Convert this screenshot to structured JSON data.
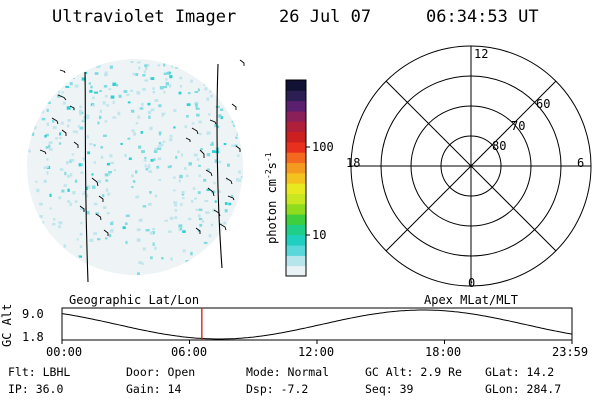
{
  "header": {
    "instrument": "Ultraviolet Imager",
    "date": "26 Jul 07",
    "time": "06:34:53 UT"
  },
  "colorbar": {
    "label": "photon cm",
    "label_exp1": "-2",
    "label_mid": "s",
    "label_exp2": "-1",
    "tick_100": "100",
    "tick_10": "10",
    "colors": [
      "#e9f2f5",
      "#b7e5ec",
      "#59d7d9",
      "#1fcfbf",
      "#1fcf88",
      "#3ecf3e",
      "#8fdc1f",
      "#c9e71f",
      "#e9e91f",
      "#f3c21f",
      "#f39a1f",
      "#f36a1f",
      "#e8301f",
      "#cc1f1f",
      "#b01f3a",
      "#8a1f5a",
      "#5a1f6e",
      "#2d1f54",
      "#111133"
    ]
  },
  "polar": {
    "mlt_12": "12",
    "mlt_18": "18",
    "mlt_6": "6",
    "mlt_0": "0",
    "lat_60": "60",
    "lat_70": "70",
    "lat_80": "80"
  },
  "altplot": {
    "title_left": "Geographic Lat/Lon",
    "title_right": "Apex MLat/MLT",
    "ylabel": "GC Alt",
    "ytick_top": "9.0",
    "ytick_bottom": "1.8",
    "xticks": [
      "00:00",
      "06:00",
      "12:00",
      "18:00",
      "23:59"
    ],
    "current_time_hours": 6.58
  },
  "info": {
    "filter_label": "Flt: LBHL",
    "ip_label": "IP: 36.0",
    "door_label": "Door: Open",
    "gain_label": "Gain: 14",
    "mode_label": "Mode: Normal",
    "dsp_label": "Dsp:   -7.2",
    "gcalt_label": "GC Alt: 2.9 Re",
    "seq_label": "Seq: 39",
    "glat_label": "GLat:  14.2",
    "glon_label": "GLon: 284.7"
  }
}
